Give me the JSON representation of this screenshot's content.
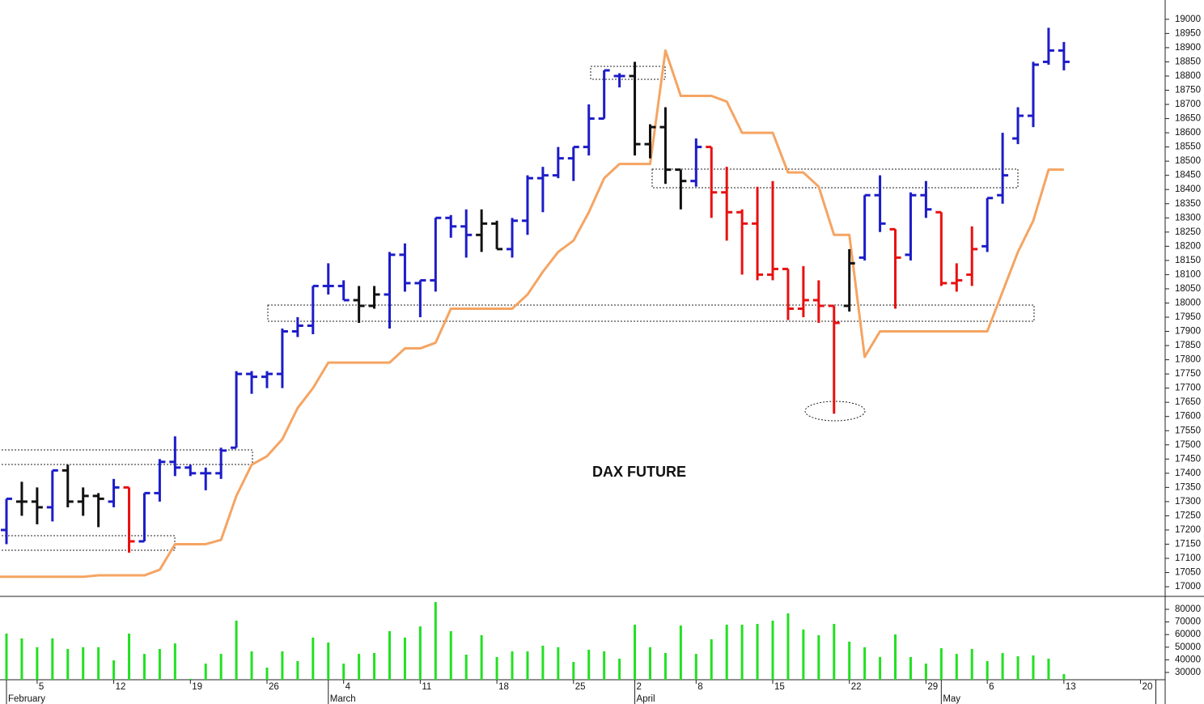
{
  "chart_data": {
    "type": "ohlc",
    "annotation": "DAX FUTURE",
    "categories": [
      null,
      null,
      "5",
      null,
      null,
      null,
      null,
      "12",
      null,
      null,
      null,
      null,
      "19",
      null,
      null,
      null,
      null,
      "26",
      null,
      null,
      null,
      null,
      "4",
      null,
      null,
      null,
      null,
      "11",
      null,
      null,
      null,
      null,
      "18",
      null,
      null,
      null,
      null,
      "25",
      null,
      null,
      null,
      "2",
      null,
      null,
      null,
      "8",
      null,
      null,
      null,
      null,
      "15",
      null,
      null,
      null,
      null,
      "22",
      null,
      null,
      null,
      null,
      "29",
      null,
      null,
      null,
      "6",
      null,
      null,
      null,
      null,
      "13",
      null,
      null,
      null,
      null,
      "20",
      null
    ],
    "month_labels": [
      "February",
      null,
      null,
      null,
      null,
      null,
      null,
      null,
      null,
      null,
      null,
      null,
      null,
      null,
      null,
      null,
      null,
      null,
      null,
      null,
      null,
      "March",
      null,
      null,
      null,
      null,
      null,
      null,
      null,
      null,
      null,
      null,
      null,
      null,
      null,
      null,
      null,
      null,
      null,
      null,
      null,
      "April",
      null,
      null,
      null,
      null,
      null,
      null,
      null,
      null,
      null,
      null,
      null,
      null,
      null,
      null,
      null,
      null,
      null,
      null,
      null,
      "May",
      null,
      null,
      null,
      null,
      null,
      null,
      null,
      null,
      null,
      null,
      null,
      null,
      null
    ],
    "open": [
      17200,
      17300,
      17300,
      17280,
      17410,
      17300,
      17320,
      17300,
      17350,
      17160,
      17330,
      17440,
      17420,
      17400,
      17400,
      17490,
      17750,
      17740,
      17750,
      17900,
      17920,
      18060,
      18060,
      18010,
      17990,
      18030,
      18170,
      18070,
      18080,
      18300,
      18270,
      18240,
      18280,
      18190,
      18290,
      18440,
      18450,
      18510,
      18550,
      18650,
      18800,
      18800,
      18560,
      18620,
      18470,
      18430,
      18550,
      18390,
      18320,
      18280,
      18100,
      18120,
      17980,
      18010,
      17990,
      17990,
      18160,
      18380,
      18260,
      18170,
      18380,
      18320,
      18070,
      18100,
      18200,
      18380,
      18580,
      18660,
      18850,
      18890,
      null,
      null,
      null,
      null,
      null,
      null
    ],
    "high": [
      17310,
      17370,
      17350,
      17410,
      17430,
      17350,
      17330,
      17380,
      17350,
      17330,
      17450,
      17530,
      17430,
      17420,
      17490,
      17760,
      17760,
      17760,
      17910,
      17950,
      18060,
      18140,
      18080,
      18060,
      18060,
      18180,
      18210,
      18080,
      18300,
      18310,
      18330,
      18330,
      18290,
      18300,
      18450,
      18480,
      18550,
      18550,
      18700,
      18820,
      18810,
      18850,
      18630,
      18690,
      18470,
      18580,
      18550,
      18480,
      18330,
      18410,
      18430,
      18120,
      18130,
      18080,
      17990,
      18190,
      18380,
      18450,
      18260,
      18390,
      18430,
      18320,
      18140,
      18270,
      18370,
      18600,
      18690,
      18850,
      18970,
      18920,
      null,
      null,
      null,
      null,
      null,
      null
    ],
    "low": [
      17150,
      17250,
      17220,
      17230,
      17280,
      17250,
      17210,
      17280,
      17120,
      17160,
      17300,
      17390,
      17390,
      17340,
      17380,
      17490,
      17680,
      17700,
      17700,
      17880,
      17890,
      18030,
      18010,
      17930,
      17980,
      17910,
      18040,
      17950,
      18040,
      18230,
      18160,
      18180,
      18190,
      18160,
      18240,
      18320,
      18440,
      18430,
      18520,
      18650,
      18760,
      18520,
      18510,
      18420,
      18330,
      18410,
      18300,
      18220,
      18100,
      18080,
      18080,
      17940,
      17950,
      17930,
      17610,
      17970,
      18150,
      18250,
      17980,
      18150,
      18300,
      18060,
      18040,
      18060,
      18180,
      18350,
      18560,
      18620,
      18840,
      18820,
      null,
      null,
      null,
      null,
      null,
      null
    ],
    "close": [
      17310,
      17300,
      17280,
      17410,
      17300,
      17320,
      17310,
      17350,
      17160,
      17330,
      17440,
      17420,
      17400,
      17400,
      17480,
      17750,
      17740,
      17750,
      17900,
      17920,
      18060,
      18060,
      18010,
      17990,
      18030,
      18170,
      18070,
      18080,
      18300,
      18270,
      18240,
      18280,
      18190,
      18290,
      18440,
      18450,
      18510,
      18550,
      18650,
      18820,
      18800,
      18560,
      18620,
      18470,
      18430,
      18550,
      18390,
      18320,
      18280,
      18100,
      18120,
      17980,
      18010,
      17990,
      17930,
      18140,
      18380,
      18280,
      18160,
      18380,
      18330,
      18070,
      18080,
      18190,
      18370,
      18450,
      18660,
      18840,
      18890,
      18850,
      null,
      null,
      null,
      null,
      null,
      null
    ],
    "bar_colors": [
      "#1c1cc8",
      "#111111",
      "#111111",
      "#1c1cc8",
      "#111111",
      "#111111",
      "#111111",
      "#1c1cc8",
      "#e81010",
      "#1c1cc8",
      "#1c1cc8",
      "#1c1cc8",
      "#1c1cc8",
      "#1c1cc8",
      "#1c1cc8",
      "#1c1cc8",
      "#1c1cc8",
      "#1c1cc8",
      "#1c1cc8",
      "#1c1cc8",
      "#1c1cc8",
      "#1c1cc8",
      "#1c1cc8",
      "#111111",
      "#111111",
      "#1c1cc8",
      "#1c1cc8",
      "#1c1cc8",
      "#1c1cc8",
      "#1c1cc8",
      "#1c1cc8",
      "#111111",
      "#111111",
      "#1c1cc8",
      "#1c1cc8",
      "#1c1cc8",
      "#1c1cc8",
      "#1c1cc8",
      "#1c1cc8",
      "#1c1cc8",
      "#1c1cc8",
      "#111111",
      "#111111",
      "#111111",
      "#111111",
      "#1c1cc8",
      "#e81010",
      "#e81010",
      "#e81010",
      "#e81010",
      "#e81010",
      "#e81010",
      "#e81010",
      "#e81010",
      "#e81010",
      "#111111",
      "#1c1cc8",
      "#1c1cc8",
      "#e81010",
      "#1c1cc8",
      "#1c1cc8",
      "#e81010",
      "#e81010",
      "#e81010",
      "#1c1cc8",
      "#1c1cc8",
      "#1c1cc8",
      "#1c1cc8",
      "#1c1cc8",
      "#1c1cc8",
      null,
      null,
      null,
      null,
      null,
      null
    ],
    "stop_line": {
      "color": "#f5a462",
      "values": [
        17035,
        17035,
        17035,
        17035,
        17035,
        17035,
        17040,
        17040,
        17040,
        17040,
        17060,
        17150,
        17150,
        17150,
        17165,
        17320,
        17430,
        17460,
        17520,
        17630,
        17700,
        17790,
        17790,
        17790,
        17790,
        17790,
        17840,
        17840,
        17860,
        17980,
        17980,
        17980,
        17980,
        17980,
        18030,
        18110,
        18180,
        18220,
        18320,
        18440,
        18490,
        18490,
        18490,
        18890,
        18730,
        18730,
        18730,
        18710,
        18600,
        18600,
        18600,
        18460,
        18460,
        18410,
        18240,
        18240,
        17810,
        17900,
        17900,
        17900,
        17900,
        17900,
        17900,
        17900,
        17900,
        18040,
        18180,
        18290,
        18470,
        18470,
        null,
        null,
        null,
        null,
        null,
        null
      ]
    },
    "ylim": [
      16966,
      19068
    ],
    "yticks": [
      17000,
      17050,
      17100,
      17150,
      17200,
      17250,
      17300,
      17350,
      17400,
      17450,
      17500,
      17550,
      17600,
      17650,
      17700,
      17750,
      17800,
      17850,
      17900,
      17950,
      18000,
      18050,
      18100,
      18150,
      18200,
      18250,
      18300,
      18350,
      18400,
      18450,
      18500,
      18550,
      18600,
      18650,
      18700,
      18750,
      18800,
      18850,
      18900,
      18950,
      19000
    ],
    "volume": {
      "type": "bar",
      "color": "#22e022",
      "values": [
        60800,
        57000,
        50000,
        57000,
        48600,
        50000,
        50000,
        39600,
        60800,
        44700,
        48600,
        53000,
        25000,
        37000,
        44700,
        71000,
        46700,
        33800,
        46700,
        39000,
        57600,
        53700,
        37000,
        44700,
        45400,
        62700,
        57600,
        66500,
        85800,
        62700,
        44100,
        59500,
        42200,
        46700,
        46700,
        51200,
        50000,
        38300,
        48000,
        46700,
        40900,
        67800,
        50000,
        45400,
        67200,
        44700,
        56300,
        67800,
        67800,
        68500,
        71000,
        76800,
        64000,
        59500,
        68500,
        54400,
        50000,
        42200,
        60100,
        42200,
        37000,
        49200,
        44700,
        48600,
        39000,
        45400,
        42800,
        43500,
        40900,
        28700,
        null,
        null,
        null,
        null,
        null,
        null
      ],
      "ylim": [
        24230,
        90260
      ],
      "yticks": [
        30000,
        40000,
        50000,
        60000,
        70000,
        80000
      ]
    }
  }
}
